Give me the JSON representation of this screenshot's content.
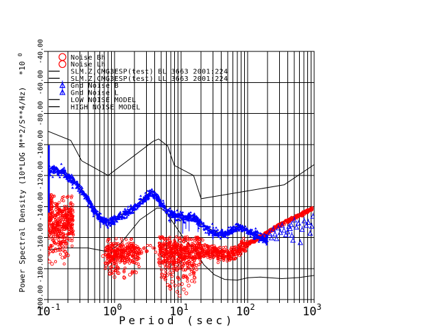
{
  "chart_data": {
    "type": "scatter",
    "xlabel": "Period (sec)",
    "ylabel": "Power Spectral Density (10*LOG M**2/S**4/Hz)",
    "y_scale_label": "*10",
    "y_scale_exponent": "0",
    "xscale": "log",
    "xlim": [
      0.1,
      1000
    ],
    "ylim": [
      -200,
      -40
    ],
    "grid": "full-log-grid-on",
    "x_tick_base": "10",
    "x_tick_exponents": [
      "-1",
      "0",
      "1",
      "2",
      "3"
    ],
    "y_ticks": [
      {
        "value": -40,
        "label": "-40.00"
      },
      {
        "value": -60,
        "label": "-60.00"
      },
      {
        "value": -80,
        "label": "-80.00"
      },
      {
        "value": -100,
        "label": "-100.00"
      },
      {
        "value": -120,
        "label": "-120.00"
      },
      {
        "value": -140,
        "label": "-140.00"
      },
      {
        "value": -160,
        "label": "-160.00"
      },
      {
        "value": -180,
        "label": "-180.00"
      },
      {
        "value": -200,
        "label": "-200.00"
      }
    ],
    "colors": {
      "data_red": "#ff0000",
      "data_blue": "#0000ff",
      "line_black": "#000000"
    },
    "legend": {
      "position": "top-left",
      "entries": [
        {
          "marker": "circle",
          "color": "#ff0000",
          "label": "Noise Bh"
        },
        {
          "marker": "circle",
          "color": "#ff0000",
          "label": "Noise Lh"
        },
        {
          "marker": "line",
          "color": "#000000",
          "label": "SLM.Z,CMG3ESP(test) BL 3663 2001:224"
        },
        {
          "marker": "line",
          "color": "#000000",
          "label": "SLM.Z,CMG3ESP(test) LL 3663 2001:224"
        },
        {
          "marker": "triangle",
          "color": "#0000ff",
          "label": "Gnd Noise B"
        },
        {
          "marker": "triangle",
          "color": "#0000ff",
          "label": "Gnd Noise L"
        },
        {
          "marker": "line",
          "color": "#000000",
          "label": "LOW NOISE MODEL"
        },
        {
          "marker": "line",
          "color": "#000000",
          "label": "HIGH NOISE MODEL"
        }
      ]
    },
    "series": {
      "high_noise_model": {
        "style": "line",
        "points": [
          [
            0.1,
            -91.5
          ],
          [
            0.22,
            -97.4
          ],
          [
            0.32,
            -110.5
          ],
          [
            0.8,
            -120
          ],
          [
            3.8,
            -98
          ],
          [
            4.6,
            -96.5
          ],
          [
            6.3,
            -101
          ],
          [
            7.9,
            -113.5
          ],
          [
            15.4,
            -120
          ],
          [
            20,
            -135
          ],
          [
            354.8,
            -126
          ],
          [
            1000,
            -113
          ]
        ]
      },
      "low_noise_model": {
        "style": "line",
        "points": [
          [
            0.1,
            -168
          ],
          [
            0.17,
            -166.7
          ],
          [
            0.4,
            -166.7
          ],
          [
            0.8,
            -169.2
          ],
          [
            1.24,
            -163.7
          ],
          [
            2.4,
            -148.6
          ],
          [
            4.3,
            -141.1
          ],
          [
            5,
            -141.1
          ],
          [
            6,
            -144
          ],
          [
            10,
            -158
          ],
          [
            12,
            -162.5
          ],
          [
            15.6,
            -167
          ],
          [
            21.9,
            -177.5
          ],
          [
            31.6,
            -184
          ],
          [
            45,
            -187
          ],
          [
            70,
            -187.5
          ],
          [
            101,
            -186
          ],
          [
            154,
            -185.5
          ],
          [
            328,
            -186.5
          ],
          [
            600,
            -185.8
          ],
          [
            1000,
            -184.5
          ]
        ]
      },
      "slm_bl_line": {
        "style": "line",
        "follows": "gnd_noise_b.centers",
        "offset_db": 1.0
      },
      "slm_ll_line": {
        "style": "line",
        "points": [
          [
            95,
            -165
          ],
          [
            130,
            -161.5
          ],
          [
            170,
            -158
          ],
          [
            220,
            -154.5
          ],
          [
            300,
            -151
          ],
          [
            400,
            -148
          ],
          [
            520,
            -145.8
          ],
          [
            700,
            -143
          ],
          [
            940,
            -140.5
          ]
        ]
      },
      "gnd_noise_b": {
        "style": "dense-triangle-band",
        "halfwidth_db": 2.3,
        "n": 1500,
        "x_range": [
          0.095,
          200
        ],
        "left_spike": [
          0.102,
          -100.5,
          -144
        ],
        "whiskers": [
          [
            6.8,
            -143.5,
            -150.5
          ],
          [
            8.2,
            -144.5,
            -151
          ],
          [
            10.6,
            -146,
            -157.5
          ],
          [
            11.8,
            -147,
            -154.5
          ],
          [
            13.2,
            -146.5,
            -156
          ],
          [
            18,
            -149,
            -156.5
          ],
          [
            30,
            -156,
            -161.5
          ],
          [
            0.62,
            -148,
            -154
          ]
        ],
        "centers": [
          [
            0.1,
            -118
          ],
          [
            0.115,
            -115.8
          ],
          [
            0.13,
            -116.5
          ],
          [
            0.15,
            -118.5
          ],
          [
            0.17,
            -117
          ],
          [
            0.2,
            -121
          ],
          [
            0.24,
            -123.5
          ],
          [
            0.28,
            -126.5
          ],
          [
            0.33,
            -130.5
          ],
          [
            0.4,
            -136
          ],
          [
            0.47,
            -141
          ],
          [
            0.55,
            -145.5
          ],
          [
            0.65,
            -148.5
          ],
          [
            0.78,
            -150.2
          ],
          [
            0.92,
            -149.3
          ],
          [
            1.1,
            -147.2
          ],
          [
            1.3,
            -145.8
          ],
          [
            1.55,
            -144.2
          ],
          [
            1.85,
            -142
          ],
          [
            2.2,
            -139.3
          ],
          [
            2.65,
            -136.2
          ],
          [
            3.1,
            -133.2
          ],
          [
            3.6,
            -131.3
          ],
          [
            4.1,
            -132.8
          ],
          [
            4.7,
            -136.5
          ],
          [
            5.4,
            -140.3
          ],
          [
            6.3,
            -143.2
          ],
          [
            7.3,
            -144.8
          ],
          [
            8.5,
            -145.8
          ],
          [
            10,
            -146.2
          ],
          [
            11.5,
            -147.3
          ],
          [
            13.5,
            -146.6
          ],
          [
            16,
            -148
          ],
          [
            19,
            -150.6
          ],
          [
            22,
            -152.8
          ],
          [
            26,
            -155
          ],
          [
            31,
            -156.8
          ],
          [
            37,
            -157.9
          ],
          [
            44,
            -158.2
          ],
          [
            52,
            -156.8
          ],
          [
            62,
            -154.6
          ],
          [
            74,
            -153.2
          ],
          [
            88,
            -154.6
          ],
          [
            105,
            -156.8
          ],
          [
            125,
            -158.2
          ],
          [
            150,
            -159.6
          ],
          [
            175,
            -160.8
          ],
          [
            200,
            -160.2
          ]
        ]
      },
      "gnd_noise_l": {
        "style": "open-triangles",
        "points": [
          [
            212,
            -157.5
          ],
          [
            228,
            -160.5
          ],
          [
            242,
            -155
          ],
          [
            258,
            -158
          ],
          [
            272,
            -161
          ],
          [
            290,
            -154
          ],
          [
            310,
            -157
          ],
          [
            330,
            -152.5
          ],
          [
            352,
            -155.5
          ],
          [
            375,
            -158.5
          ],
          [
            398,
            -156.5
          ],
          [
            420,
            -153
          ],
          [
            435,
            -154.5
          ],
          [
            452,
            -152
          ],
          [
            462,
            -158.8
          ],
          [
            480,
            -162
          ],
          [
            505,
            -149
          ],
          [
            540,
            -153.5
          ],
          [
            580,
            -151
          ],
          [
            620,
            -163.5
          ],
          [
            660,
            -155
          ],
          [
            710,
            -149.5
          ],
          [
            760,
            -152.5
          ],
          [
            820,
            -150.5
          ],
          [
            870,
            -157.5
          ],
          [
            920,
            -153
          ],
          [
            960,
            -146.5
          ]
        ]
      },
      "noise_red": {
        "style": "open-circles",
        "clusters": [
          {
            "name": "short-period-dense",
            "x0": 0.095,
            "x1": 0.24,
            "center": -150,
            "sd": 8,
            "clip": [
              -167.5,
              -133
            ],
            "n": 380
          },
          {
            "name": "short-period-top-edge",
            "x0": 0.095,
            "x1": 0.115,
            "center": -138,
            "sd": 4,
            "clip": [
              -147,
              -128
            ],
            "n": 45
          },
          {
            "name": "short-period-tail",
            "x0": 0.097,
            "x1": 0.2,
            "center": -168,
            "sd": 3.5,
            "clip": [
              -178,
              -163
            ],
            "n": 30
          },
          {
            "name": "one-second-band",
            "x0": 0.72,
            "x1": 2.35,
            "center": -170,
            "sd": 4.2,
            "clip": [
              -180,
              -160.5
            ],
            "n": 300
          },
          {
            "name": "one-second-tail",
            "x0": 0.8,
            "x1": 2.2,
            "center": -181,
            "sd": 2.5,
            "clip": [
              -188,
              -177
            ],
            "n": 22
          },
          {
            "name": "sparse-2-4s",
            "x0": 2.4,
            "x1": 4.3,
            "center": -167,
            "sd": 3.5,
            "clip": [
              -174,
              -161
            ],
            "n": 14
          },
          {
            "name": "teleseismic-band",
            "x0": 4.6,
            "x1": 20,
            "center": -169.5,
            "sd": 5,
            "clip": [
              -181,
              -159.5
            ],
            "n": 480
          },
          {
            "name": "teleseismic-tail",
            "x0": 5,
            "x1": 16,
            "center": -185,
            "sd": 3,
            "clip": [
              -192,
              -180
            ],
            "n": 40
          },
          {
            "name": "long-period-band",
            "x0": 20,
            "x1": 100,
            "profile": [
              [
                20,
                -167.5
              ],
              [
                28,
                -169.5
              ],
              [
                38,
                -170.5
              ],
              [
                50,
                -171.5
              ],
              [
                65,
                -169.5
              ],
              [
                80,
                -166.5
              ],
              [
                100,
                -163.8
              ]
            ],
            "sd": 2.2,
            "n": 280
          },
          {
            "name": "very-long-period-line",
            "x0": 100,
            "x1": 940,
            "profile": [
              [
                100,
                -164
              ],
              [
                130,
                -161.8
              ],
              [
                170,
                -158.8
              ],
              [
                220,
                -155.6
              ],
              [
                300,
                -152.2
              ],
              [
                400,
                -149.2
              ],
              [
                520,
                -147
              ],
              [
                700,
                -144.2
              ],
              [
                940,
                -141.5
              ]
            ],
            "sd": 0.55,
            "n": 330
          }
        ],
        "outliers": [
          [
            0.1,
            -171
          ],
          [
            0.105,
            -175.5
          ],
          [
            0.115,
            -177
          ],
          [
            0.13,
            -168.5
          ],
          [
            0.15,
            -166
          ],
          [
            0.18,
            -169
          ],
          [
            0.2,
            -171.5
          ],
          [
            0.165,
            -173
          ],
          [
            0.67,
            -172
          ],
          [
            0.85,
            -183.5
          ],
          [
            1.0,
            -185.5
          ],
          [
            1.15,
            -183
          ],
          [
            1.4,
            -186
          ],
          [
            1.7,
            -184
          ],
          [
            2.1,
            -182.5
          ],
          [
            0.95,
            -180.5
          ],
          [
            5.2,
            -184
          ],
          [
            5.8,
            -187
          ],
          [
            6.3,
            -190.5
          ],
          [
            6.9,
            -193
          ],
          [
            7.4,
            -188.5
          ],
          [
            8.1,
            -191
          ],
          [
            8.8,
            -195
          ],
          [
            9.5,
            -197.5
          ],
          [
            10.3,
            -190
          ],
          [
            11,
            -193.5
          ],
          [
            12,
            -196
          ],
          [
            13,
            -191
          ],
          [
            9.0,
            -186
          ],
          [
            14.5,
            -188
          ],
          [
            6.1,
            -184.5
          ],
          [
            16,
            -186
          ]
        ]
      }
    }
  }
}
